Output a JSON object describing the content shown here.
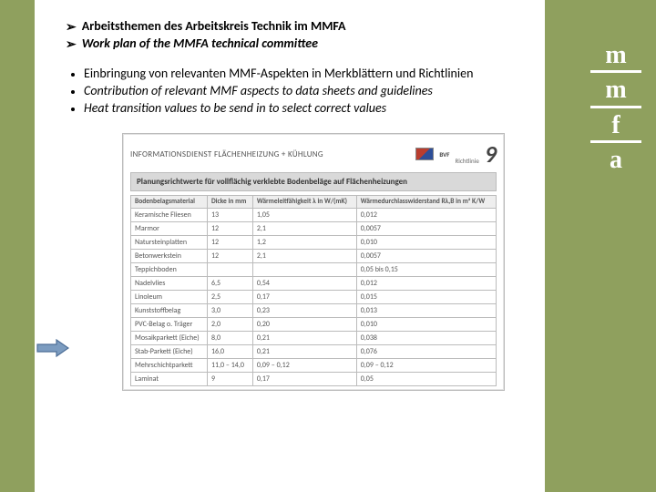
{
  "headings": [
    "Arbeitsthemen des Arbeitskreis Technik im MMFA",
    "Work plan of the MMFA technical committee"
  ],
  "bullets": [
    {
      "text": "Einbringung von relevanten MMF-Aspekten in Merkblättern und Richtlinien",
      "italic": false
    },
    {
      "text": "Contribution of relevant MMF aspects to data sheets and guidelines",
      "italic": true
    },
    {
      "text": "Heat transition values to be send in to select  correct values",
      "italic": true
    }
  ],
  "sheet": {
    "info_line": "INFORMATIONSDIENST FLÄCHENHEIZUNG + KÜHLUNG",
    "bvf": "BVF",
    "richtlinie": "Richtlinie",
    "number": "9",
    "banner": "Planungsrichtwerte für vollflächig verklebte Bodenbeläge auf Flächenheizungen",
    "columns": [
      "Bodenbelagsmaterial",
      "Dicke in mm",
      "Wärmeleitfähigkeit λ in W/(mK)",
      "Wärmedurchlasswiderstand Rλ,B in m² K/W"
    ],
    "groups": [
      [
        [
          "Keramische Fliesen",
          "13",
          "1,05",
          "0,012"
        ],
        [
          "Marmor",
          "12",
          "2,1",
          "0,0057"
        ],
        [
          "Natursteinplatten",
          "12",
          "1,2",
          "0,010"
        ],
        [
          "Betonwerkstein",
          "12",
          "2,1",
          "0,0057"
        ]
      ],
      [
        [
          "Teppichboden",
          "",
          "",
          "0,05 bis 0,15"
        ]
      ],
      [
        [
          "Nadelvlies",
          "6,5",
          "0,54",
          "0,012"
        ]
      ],
      [
        [
          "Linoleum",
          "2,5",
          "0,17",
          "0,015"
        ],
        [
          "Kunststoffbelag",
          "3,0",
          "0,23",
          "0,013"
        ],
        [
          "PVC-Belag o. Träger",
          "2,0",
          "0,20",
          "0,010"
        ]
      ],
      [
        [
          "Mosaikparkett (Eiche)",
          "8,0",
          "0,21",
          "0,038"
        ],
        [
          "Stab-Parkett (Eiche)",
          "16,0",
          "0,21",
          "0,076"
        ],
        [
          "Mehrschichtparkett",
          "11,0 – 14,0",
          "0,09 – 0,12",
          "0,09 – 0,12"
        ],
        [
          "Laminat",
          "9",
          "0,17",
          "0,05"
        ]
      ]
    ]
  },
  "logo": {
    "letters": [
      "m",
      "m",
      "f",
      "a"
    ]
  },
  "colors": {
    "bg": "#8fa05e",
    "panel": "#ffffff",
    "arrow_fill": "#7c9cc0",
    "arrow_stroke": "#4d6e97"
  }
}
